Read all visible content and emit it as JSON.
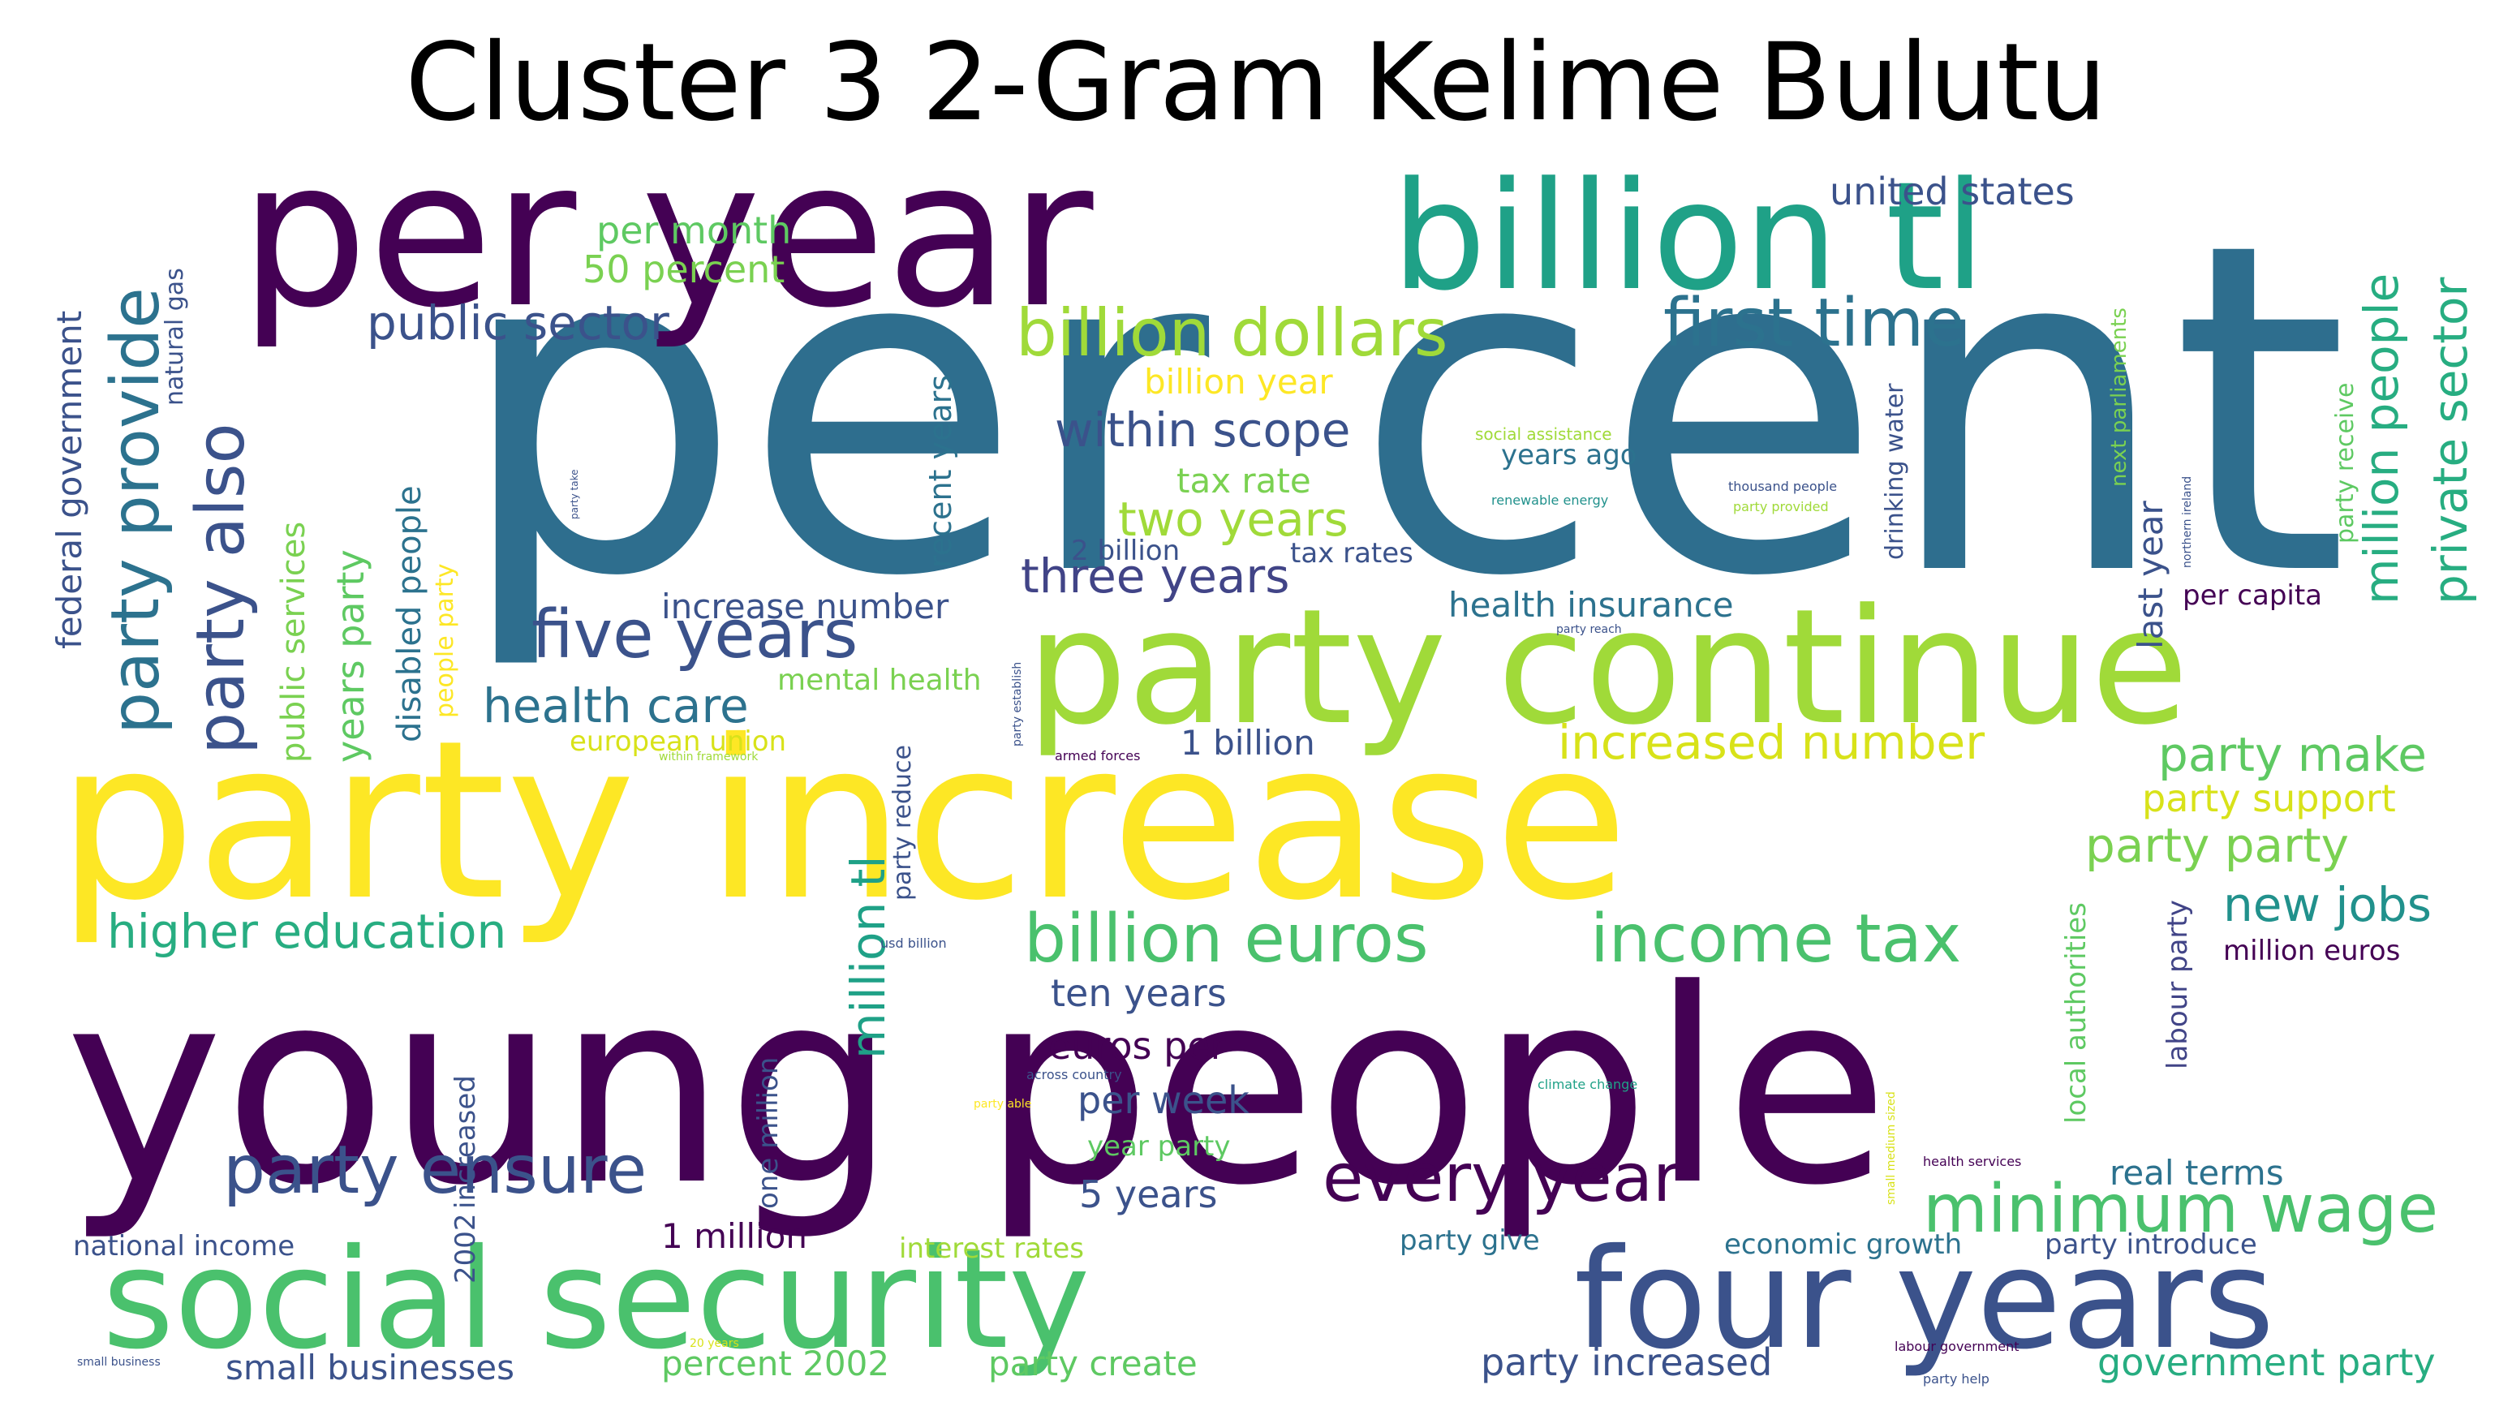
{
  "title": "Cluster 3 2-Gram Kelime Bulutu",
  "words": [
    {
      "text": "per cent",
      "color": "#2e6e8e"
    },
    {
      "text": "young people",
      "color": "#440154"
    },
    {
      "text": "per year",
      "color": "#440154"
    },
    {
      "text": "party increase",
      "color": "#fde725"
    },
    {
      "text": "party continue",
      "color": "#a0da39"
    },
    {
      "text": "billion tl",
      "color": "#1fa187"
    },
    {
      "text": "social security",
      "color": "#4ac16d"
    },
    {
      "text": "four years",
      "color": "#3b528b"
    },
    {
      "text": "billion dollars",
      "color": "#a0da39"
    },
    {
      "text": "first time",
      "color": "#2c728e"
    },
    {
      "text": "billion euros",
      "color": "#4ac16d"
    },
    {
      "text": "income tax",
      "color": "#4ac16d"
    },
    {
      "text": "minimum wage",
      "color": "#4ac16d"
    },
    {
      "text": "every year",
      "color": "#440154"
    },
    {
      "text": "party ensure",
      "color": "#3b528b"
    },
    {
      "text": "five years",
      "color": "#3b528b"
    },
    {
      "text": "health care",
      "color": "#2c728e"
    },
    {
      "text": "higher education",
      "color": "#27ad81"
    },
    {
      "text": "party provide",
      "color": "#2c728e"
    },
    {
      "text": "party also",
      "color": "#3b528b"
    },
    {
      "text": "public sector",
      "color": "#3b528b"
    },
    {
      "text": "within scope",
      "color": "#3b528b"
    },
    {
      "text": "two years",
      "color": "#a0da39"
    },
    {
      "text": "three years",
      "color": "#414487"
    },
    {
      "text": "increased number",
      "color": "#d8e219"
    },
    {
      "text": "party make",
      "color": "#5ec962"
    },
    {
      "text": "party party",
      "color": "#7ad151"
    },
    {
      "text": "new jobs",
      "color": "#21918c"
    },
    {
      "text": "party support",
      "color": "#d8e219"
    },
    {
      "text": "million people",
      "color": "#27ad81"
    },
    {
      "text": "private sector",
      "color": "#27ad81"
    },
    {
      "text": "united states",
      "color": "#3b528b"
    },
    {
      "text": "per month",
      "color": "#5ec962"
    },
    {
      "text": "50 percent",
      "color": "#7ad151"
    },
    {
      "text": "billion year",
      "color": "#fde725"
    },
    {
      "text": "tax rate",
      "color": "#7ad151"
    },
    {
      "text": "2 billion",
      "color": "#3b528b"
    },
    {
      "text": "tax rates",
      "color": "#3b528b"
    },
    {
      "text": "increase number",
      "color": "#3b528b"
    },
    {
      "text": "mental health",
      "color": "#7ad151"
    },
    {
      "text": "european union",
      "color": "#d8e219"
    },
    {
      "text": "1 billion",
      "color": "#3b528b"
    },
    {
      "text": "health insurance",
      "color": "#2c728e"
    },
    {
      "text": "years ago",
      "color": "#2c728e"
    },
    {
      "text": "per capita",
      "color": "#440154"
    },
    {
      "text": "last year",
      "color": "#3b528b"
    },
    {
      "text": "next parliaments",
      "color": "#7ad151"
    },
    {
      "text": "party receive",
      "color": "#5ec962"
    },
    {
      "text": "drinking water",
      "color": "#3b528b"
    },
    {
      "text": "recent years",
      "color": "#2c728e"
    },
    {
      "text": "federal government",
      "color": "#3b528b"
    },
    {
      "text": "natural gas",
      "color": "#3b528b"
    },
    {
      "text": "public services",
      "color": "#7ad151"
    },
    {
      "text": "years party",
      "color": "#5ec962"
    },
    {
      "text": "disabled people",
      "color": "#2c728e"
    },
    {
      "text": "people party",
      "color": "#fde725"
    },
    {
      "text": "million tl",
      "color": "#1fa187"
    },
    {
      "text": "party reduce",
      "color": "#3b528b"
    },
    {
      "text": "ten years",
      "color": "#3b528b"
    },
    {
      "text": "euros per",
      "color": "#440154"
    },
    {
      "text": "per week",
      "color": "#3b528b"
    },
    {
      "text": "year party",
      "color": "#5ec962"
    },
    {
      "text": "5 years",
      "color": "#3b528b"
    },
    {
      "text": "1 million",
      "color": "#440154"
    },
    {
      "text": "interest rates",
      "color": "#a0da39"
    },
    {
      "text": "percent 2002",
      "color": "#5ec962"
    },
    {
      "text": "party create",
      "color": "#5ec962"
    },
    {
      "text": "small businesses",
      "color": "#3b528b"
    },
    {
      "text": "national income",
      "color": "#3b528b"
    },
    {
      "text": "one million",
      "color": "#3b528b"
    },
    {
      "text": "increased",
      "color": "#3b528b"
    },
    {
      "text": "2002",
      "color": "#3b528b"
    },
    {
      "text": "party give",
      "color": "#2c728e"
    },
    {
      "text": "economic growth",
      "color": "#2c728e"
    },
    {
      "text": "party introduce",
      "color": "#3b528b"
    },
    {
      "text": "party increased",
      "color": "#3b528b"
    },
    {
      "text": "government party",
      "color": "#27ad81"
    },
    {
      "text": "real terms",
      "color": "#2c728e"
    },
    {
      "text": "million euros",
      "color": "#440154"
    },
    {
      "text": "local authorities",
      "color": "#5ec962"
    },
    {
      "text": "labour party",
      "color": "#414487"
    },
    {
      "text": "social assistance",
      "color": "#a0da39"
    },
    {
      "text": "renewable energy",
      "color": "#21918c"
    },
    {
      "text": "thousand people",
      "color": "#3b528b"
    },
    {
      "text": "party provided",
      "color": "#a0da39"
    },
    {
      "text": "northern ireland",
      "color": "#3b528b"
    },
    {
      "text": "party reach",
      "color": "#3b528b"
    },
    {
      "text": "party establish",
      "color": "#3b528b"
    },
    {
      "text": "within framework",
      "color": "#a0da39"
    },
    {
      "text": "armed forces",
      "color": "#440154"
    },
    {
      "text": "party take",
      "color": "#3b528b"
    },
    {
      "text": "usd billion",
      "color": "#3b528b"
    },
    {
      "text": "across country",
      "color": "#3b528b"
    },
    {
      "text": "party able",
      "color": "#fde725"
    },
    {
      "text": "climate change",
      "color": "#1fa187"
    },
    {
      "text": "health services",
      "color": "#440154"
    },
    {
      "text": "small medium sized",
      "color": "#d8e219"
    },
    {
      "text": "labour government",
      "color": "#440154"
    },
    {
      "text": "party help",
      "color": "#3b528b"
    },
    {
      "text": "20 years",
      "color": "#d8e219"
    },
    {
      "text": "small business",
      "color": "#3b528b"
    }
  ]
}
